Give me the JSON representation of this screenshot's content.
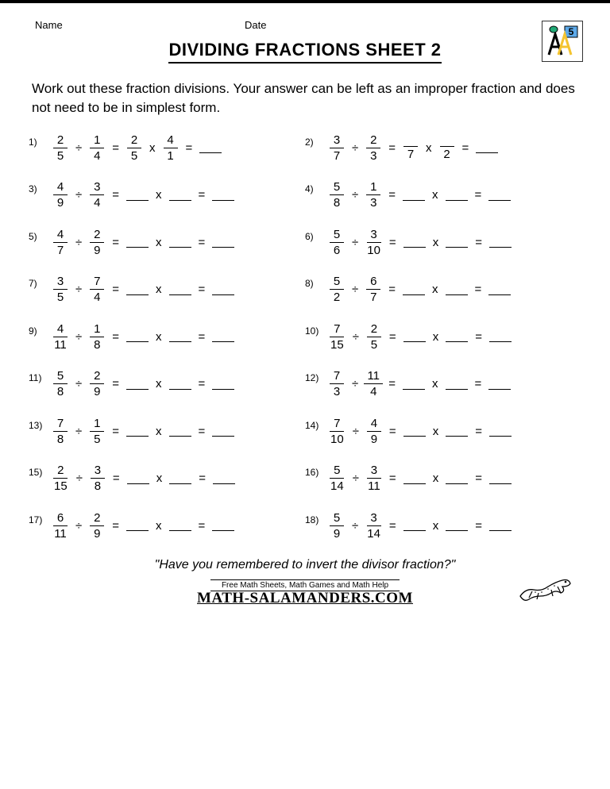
{
  "header": {
    "name_label": "Name",
    "date_label": "Date"
  },
  "title": "DIVIDING FRACTIONS SHEET 2",
  "logo_number": "5",
  "instructions": "Work out these fraction divisions. Your answer can be left as an improper fraction and does not need to be in simplest form.",
  "symbols": {
    "divide": "÷",
    "times": "x",
    "equals": "="
  },
  "problems": [
    {
      "n": "1)",
      "a": {
        "num": "2",
        "den": "5"
      },
      "b": {
        "num": "1",
        "den": "4"
      },
      "worked": {
        "c": {
          "num": "2",
          "den": "5"
        },
        "d": {
          "num": "4",
          "den": "1"
        }
      }
    },
    {
      "n": "2)",
      "a": {
        "num": "3",
        "den": "7"
      },
      "b": {
        "num": "2",
        "den": "3"
      },
      "partial": {
        "c_den": "7",
        "d_den": "2"
      }
    },
    {
      "n": "3)",
      "a": {
        "num": "4",
        "den": "9"
      },
      "b": {
        "num": "3",
        "den": "4"
      }
    },
    {
      "n": "4)",
      "a": {
        "num": "5",
        "den": "8"
      },
      "b": {
        "num": "1",
        "den": "3"
      }
    },
    {
      "n": "5)",
      "a": {
        "num": "4",
        "den": "7"
      },
      "b": {
        "num": "2",
        "den": "9"
      }
    },
    {
      "n": "6)",
      "a": {
        "num": "5",
        "den": "6"
      },
      "b": {
        "num": "3",
        "den": "10"
      }
    },
    {
      "n": "7)",
      "a": {
        "num": "3",
        "den": "5"
      },
      "b": {
        "num": "7",
        "den": "4"
      }
    },
    {
      "n": "8)",
      "a": {
        "num": "5",
        "den": "2"
      },
      "b": {
        "num": "6",
        "den": "7"
      }
    },
    {
      "n": "9)",
      "a": {
        "num": "4",
        "den": "11"
      },
      "b": {
        "num": "1",
        "den": "8"
      }
    },
    {
      "n": "10)",
      "a": {
        "num": "7",
        "den": "15"
      },
      "b": {
        "num": "2",
        "den": "5"
      }
    },
    {
      "n": "11)",
      "a": {
        "num": "5",
        "den": "8"
      },
      "b": {
        "num": "2",
        "den": "9"
      }
    },
    {
      "n": "12)",
      "a": {
        "num": "7",
        "den": "3"
      },
      "b": {
        "num": "11",
        "den": "4"
      }
    },
    {
      "n": "13)",
      "a": {
        "num": "7",
        "den": "8"
      },
      "b": {
        "num": "1",
        "den": "5"
      }
    },
    {
      "n": "14)",
      "a": {
        "num": "7",
        "den": "10"
      },
      "b": {
        "num": "4",
        "den": "9"
      }
    },
    {
      "n": "15)",
      "a": {
        "num": "2",
        "den": "15"
      },
      "b": {
        "num": "3",
        "den": "8"
      }
    },
    {
      "n": "16)",
      "a": {
        "num": "5",
        "den": "14"
      },
      "b": {
        "num": "3",
        "den": "11"
      }
    },
    {
      "n": "17)",
      "a": {
        "num": "6",
        "den": "11"
      },
      "b": {
        "num": "2",
        "den": "9"
      }
    },
    {
      "n": "18)",
      "a": {
        "num": "5",
        "den": "9"
      },
      "b": {
        "num": "3",
        "den": "14"
      }
    }
  ],
  "hint": "\"Have you remembered to invert the divisor fraction?\"",
  "footer": {
    "sub": "Free Math Sheets, Math Games and Math Help",
    "brand": "MATH-SALAMANDERS.COM"
  },
  "colors": {
    "text": "#000000",
    "background": "#ffffff",
    "logo_blue": "#5da9e9",
    "logo_yellow": "#f4c430"
  }
}
